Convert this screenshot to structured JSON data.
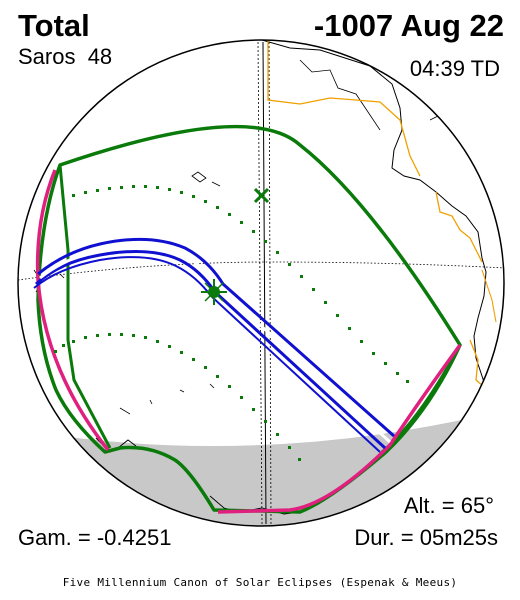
{
  "header": {
    "eclipse_type": "Total",
    "date": "-1007 Aug 22",
    "saros": "Saros  48",
    "time": "04:39 TD"
  },
  "footer": {
    "gamma": "Gam. = -0.4251",
    "altitude": "Alt. = 65°",
    "duration": "Dur. = 05m25s",
    "credit": "Five Millennium Canon of Solar Eclipses (Espenak & Meeus)"
  },
  "colors": {
    "penumbra_limit": "#0a7a0a",
    "central_path": "#1010d0",
    "rise_set_curve": "#e0207f",
    "coastline": "#000000",
    "borders": "#f0a000",
    "night_side": "#c8c8c8"
  }
}
